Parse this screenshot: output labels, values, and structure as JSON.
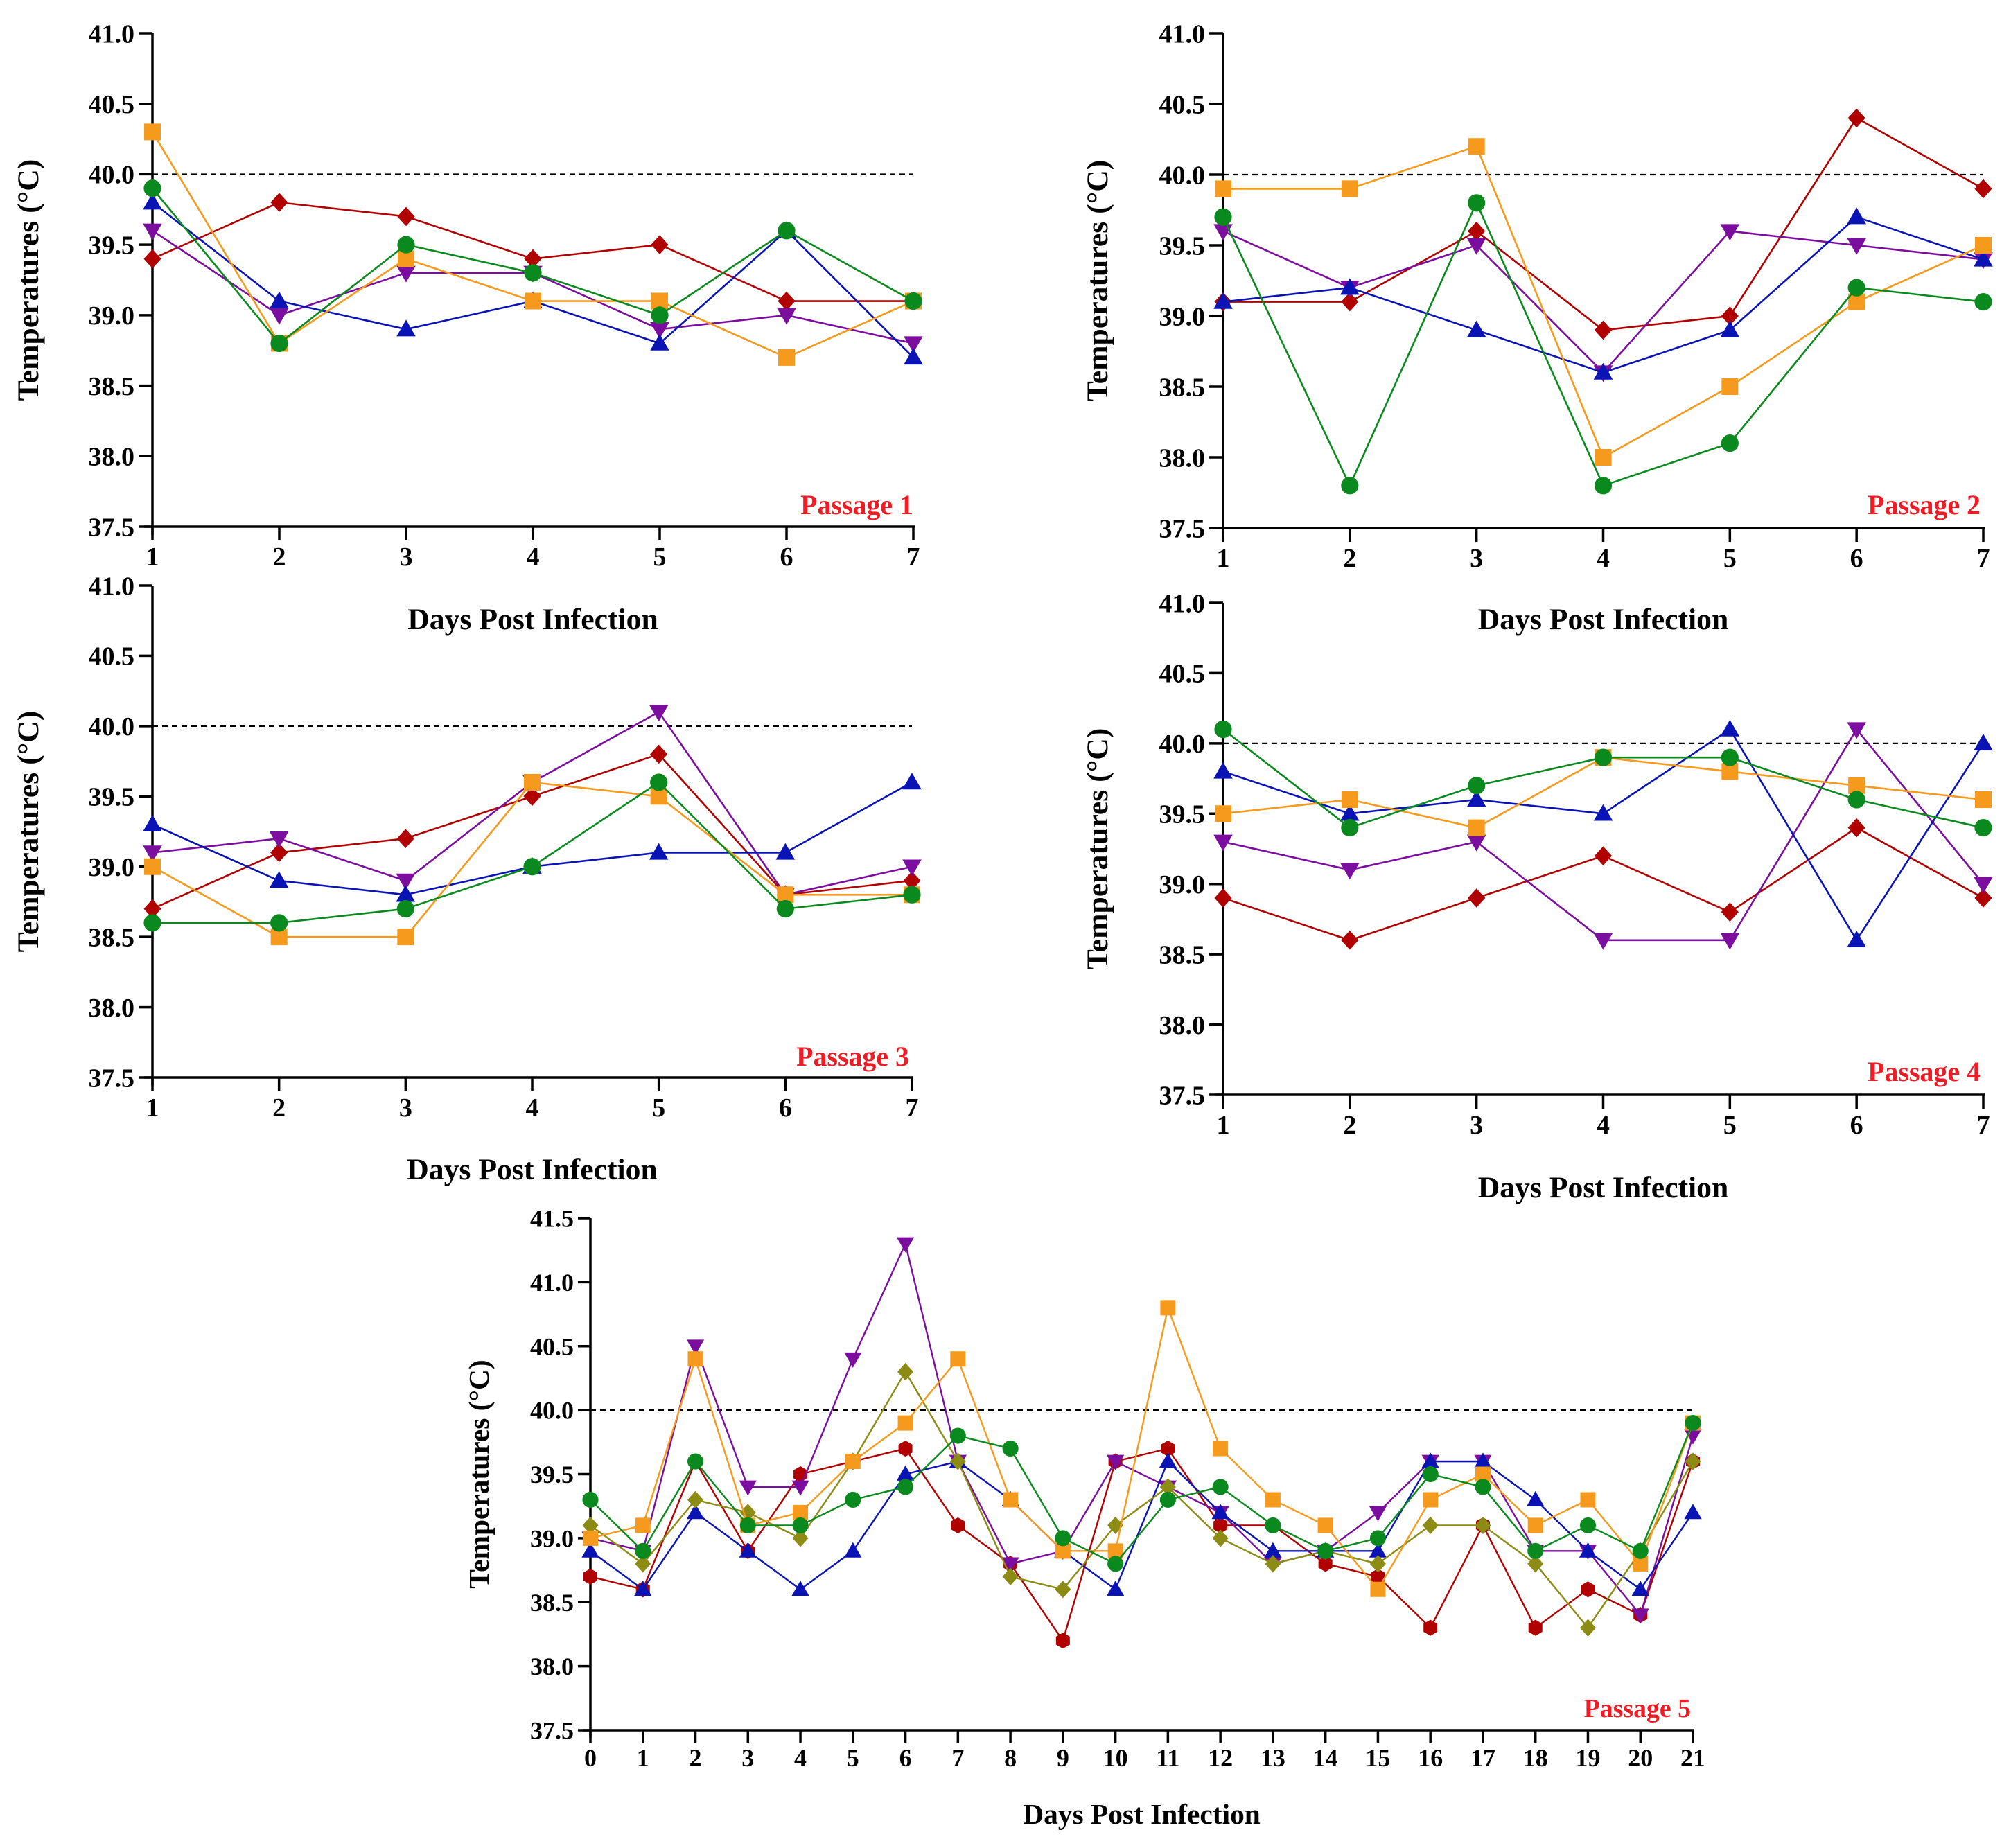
{
  "colors": {
    "red": "#B00000",
    "purple": "#7B0E9E",
    "blue": "#0A14B4",
    "green": "#0A8A1E",
    "orange": "#F59A1C",
    "olive": "#8C8C14",
    "annotation": "#EE1C25",
    "reference_line": "#000000"
  },
  "chart_data": [
    {
      "type": "line",
      "title": "",
      "annotation": "Passage 1",
      "xlabel": "Days Post Infection",
      "ylabel": "Temperatures (°C)",
      "x": [
        1,
        2,
        3,
        4,
        5,
        6,
        7
      ],
      "ylim": [
        37.5,
        41.0
      ],
      "yticks": [
        "37.5",
        "38.0",
        "38.5",
        "39.0",
        "39.5",
        "40.0",
        "40.5",
        "41.0"
      ],
      "reference_line": 40.0,
      "series": [
        {
          "name": "red",
          "marker": "diamond",
          "values": [
            39.4,
            39.8,
            39.7,
            39.4,
            39.5,
            39.1,
            39.1
          ]
        },
        {
          "name": "purple",
          "marker": "triangle-down",
          "values": [
            39.6,
            39.0,
            39.3,
            39.3,
            38.9,
            39.0,
            38.8
          ]
        },
        {
          "name": "blue",
          "marker": "triangle-up",
          "values": [
            39.8,
            39.1,
            38.9,
            39.1,
            38.8,
            39.6,
            38.7
          ]
        },
        {
          "name": "orange",
          "marker": "square",
          "values": [
            40.3,
            38.8,
            39.4,
            39.1,
            39.1,
            38.7,
            39.1
          ]
        },
        {
          "name": "green",
          "marker": "circle",
          "values": [
            39.9,
            38.8,
            39.5,
            39.3,
            39.0,
            39.6,
            39.1
          ]
        }
      ]
    },
    {
      "type": "line",
      "title": "",
      "annotation": "Passage 2",
      "xlabel": "Days Post Infection",
      "ylabel": "Temperatures (°C)",
      "x": [
        1,
        2,
        3,
        4,
        5,
        6,
        7
      ],
      "ylim": [
        37.5,
        41.0
      ],
      "yticks": [
        "37.5",
        "38.0",
        "38.5",
        "39.0",
        "39.5",
        "40.0",
        "40.5",
        "41.0"
      ],
      "reference_line": 40.0,
      "series": [
        {
          "name": "red",
          "marker": "diamond",
          "values": [
            39.1,
            39.1,
            39.6,
            38.9,
            39.0,
            40.4,
            39.9
          ]
        },
        {
          "name": "purple",
          "marker": "triangle-down",
          "values": [
            39.6,
            39.2,
            39.5,
            38.6,
            39.6,
            39.5,
            39.4
          ]
        },
        {
          "name": "blue",
          "marker": "triangle-up",
          "values": [
            39.1,
            39.2,
            38.9,
            38.6,
            38.9,
            39.7,
            39.4
          ]
        },
        {
          "name": "orange",
          "marker": "square",
          "values": [
            39.9,
            39.9,
            40.2,
            38.0,
            38.5,
            39.1,
            39.5
          ]
        },
        {
          "name": "green",
          "marker": "circle",
          "values": [
            39.7,
            37.8,
            39.8,
            37.8,
            38.1,
            39.2,
            39.1
          ]
        }
      ]
    },
    {
      "type": "line",
      "title": "",
      "annotation": "Passage 3",
      "xlabel": "Days Post Infection",
      "ylabel": "Temperatures (°C)",
      "x": [
        1,
        2,
        3,
        4,
        5,
        6,
        7
      ],
      "ylim": [
        37.5,
        41.0
      ],
      "yticks": [
        "37.5",
        "38.0",
        "38.5",
        "39.0",
        "39.5",
        "40.0",
        "40.5",
        "41.0"
      ],
      "reference_line": 40.0,
      "series": [
        {
          "name": "red",
          "marker": "diamond",
          "values": [
            38.7,
            39.1,
            39.2,
            39.5,
            39.8,
            38.8,
            38.9
          ]
        },
        {
          "name": "purple",
          "marker": "triangle-down",
          "values": [
            39.1,
            39.2,
            38.9,
            39.6,
            40.1,
            38.8,
            39.0
          ]
        },
        {
          "name": "blue",
          "marker": "triangle-up",
          "values": [
            39.3,
            38.9,
            38.8,
            39.0,
            39.1,
            39.1,
            39.6
          ]
        },
        {
          "name": "orange",
          "marker": "square",
          "values": [
            39.0,
            38.5,
            38.5,
            39.6,
            39.5,
            38.8,
            38.8
          ]
        },
        {
          "name": "green",
          "marker": "circle",
          "values": [
            38.6,
            38.6,
            38.7,
            39.0,
            39.6,
            38.7,
            38.8
          ]
        }
      ]
    },
    {
      "type": "line",
      "title": "",
      "annotation": "Passage 4",
      "xlabel": "Days Post Infection",
      "ylabel": "Temperatures (°C)",
      "x": [
        1,
        2,
        3,
        4,
        5,
        6,
        7
      ],
      "ylim": [
        37.5,
        41.0
      ],
      "yticks": [
        "37.5",
        "38.0",
        "38.5",
        "39.0",
        "39.5",
        "40.0",
        "40.5",
        "41.0"
      ],
      "reference_line": 40.0,
      "series": [
        {
          "name": "red",
          "marker": "diamond",
          "values": [
            38.9,
            38.6,
            38.9,
            39.2,
            38.8,
            39.4,
            38.9
          ]
        },
        {
          "name": "purple",
          "marker": "triangle-down",
          "values": [
            39.3,
            39.1,
            39.3,
            38.6,
            38.6,
            40.1,
            39.0
          ]
        },
        {
          "name": "blue",
          "marker": "triangle-up",
          "values": [
            39.8,
            39.5,
            39.6,
            39.5,
            40.1,
            38.6,
            40.0
          ]
        },
        {
          "name": "orange",
          "marker": "square",
          "values": [
            39.5,
            39.6,
            39.4,
            39.9,
            39.8,
            39.7,
            39.6
          ]
        },
        {
          "name": "green",
          "marker": "circle",
          "values": [
            40.1,
            39.4,
            39.7,
            39.9,
            39.9,
            39.6,
            39.4
          ]
        }
      ]
    },
    {
      "type": "line",
      "title": "",
      "annotation": "Passage 5",
      "xlabel": "Days Post Infection",
      "ylabel": "Temperatures (°C)",
      "x": [
        0,
        1,
        2,
        3,
        4,
        5,
        6,
        7,
        8,
        9,
        10,
        11,
        12,
        13,
        14,
        15,
        16,
        17,
        18,
        19,
        20,
        21
      ],
      "ylim": [
        37.5,
        41.5
      ],
      "yticks": [
        "37.5",
        "38.0",
        "38.5",
        "39.0",
        "39.5",
        "40.0",
        "40.5",
        "41.0",
        "41.5"
      ],
      "reference_line": 40.0,
      "series": [
        {
          "name": "red",
          "marker": "hexagon",
          "values": [
            38.7,
            38.6,
            39.6,
            38.9,
            39.5,
            39.6,
            39.7,
            39.1,
            38.8,
            38.2,
            39.6,
            39.7,
            39.1,
            39.1,
            38.8,
            38.7,
            38.3,
            39.1,
            38.3,
            38.6,
            38.4,
            39.6
          ]
        },
        {
          "name": "purple",
          "marker": "triangle-down",
          "values": [
            39.0,
            38.9,
            40.5,
            39.4,
            39.4,
            40.4,
            41.3,
            39.6,
            38.8,
            38.9,
            39.6,
            39.4,
            39.2,
            38.8,
            38.9,
            39.2,
            39.6,
            39.6,
            38.9,
            38.9,
            38.4,
            39.8
          ]
        },
        {
          "name": "blue",
          "marker": "triangle-up",
          "values": [
            38.9,
            38.6,
            39.2,
            38.9,
            38.6,
            38.9,
            39.5,
            39.6,
            39.3,
            38.9,
            38.6,
            39.6,
            39.2,
            38.9,
            38.9,
            38.9,
            39.6,
            39.6,
            39.3,
            38.9,
            38.6,
            39.2
          ]
        },
        {
          "name": "olive",
          "marker": "diamond",
          "values": [
            39.1,
            38.8,
            39.3,
            39.2,
            39.0,
            39.6,
            40.3,
            39.6,
            38.7,
            38.6,
            39.1,
            39.4,
            39.0,
            38.8,
            38.9,
            38.8,
            39.1,
            39.1,
            38.8,
            38.3,
            38.9,
            39.6
          ]
        },
        {
          "name": "orange",
          "marker": "square",
          "values": [
            39.0,
            39.1,
            40.4,
            39.1,
            39.2,
            39.6,
            39.9,
            40.4,
            39.3,
            38.9,
            38.9,
            40.8,
            39.7,
            39.3,
            39.1,
            38.6,
            39.3,
            39.5,
            39.1,
            39.3,
            38.8,
            39.9
          ]
        },
        {
          "name": "green",
          "marker": "circle",
          "values": [
            39.3,
            38.9,
            39.6,
            39.1,
            39.1,
            39.3,
            39.4,
            39.8,
            39.7,
            39.0,
            38.8,
            39.3,
            39.4,
            39.1,
            38.9,
            39.0,
            39.5,
            39.4,
            38.9,
            39.1,
            38.9,
            39.9
          ]
        }
      ]
    }
  ]
}
